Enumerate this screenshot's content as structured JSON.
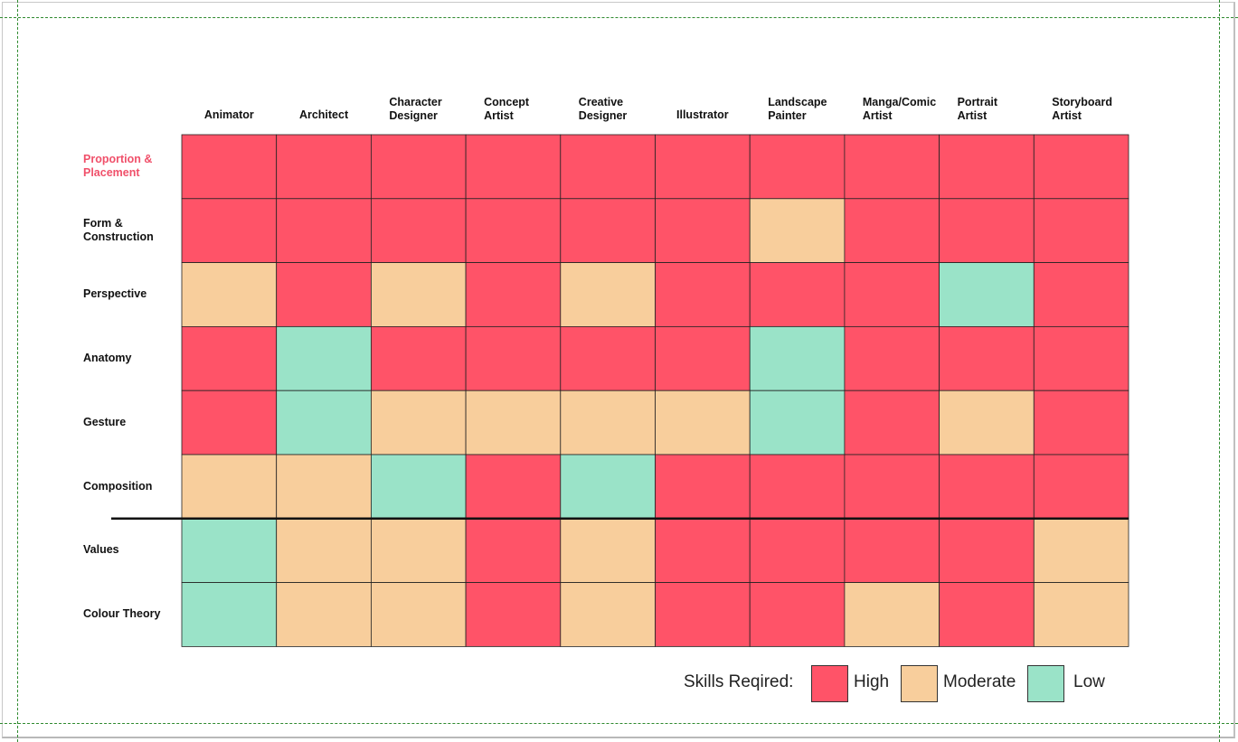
{
  "chart_data": {
    "type": "heatmap",
    "columns": [
      "Animator",
      "Architect",
      "Character\nDesigner",
      "Concept\nArtist",
      "Creative\nDesigner",
      "Illustrator",
      "Landscape\nPainter",
      "Manga/Comic\nArtist",
      "Portrait\nArtist",
      "Storyboard\nArtist"
    ],
    "rows": [
      "Proportion &\nPlacement",
      "Form &\nConstruction",
      "Perspective",
      "Anatomy",
      "Gesture",
      "Composition",
      "Values",
      "Colour Theory"
    ],
    "highlighted_row": 0,
    "divider_after_row": 5,
    "values": [
      [
        "High",
        "High",
        "High",
        "High",
        "High",
        "High",
        "High",
        "High",
        "High",
        "High"
      ],
      [
        "High",
        "High",
        "High",
        "High",
        "High",
        "High",
        "Moderate",
        "High",
        "High",
        "High"
      ],
      [
        "Moderate",
        "High",
        "Moderate",
        "High",
        "Moderate",
        "High",
        "High",
        "High",
        "Low",
        "High"
      ],
      [
        "High",
        "Low",
        "High",
        "High",
        "High",
        "High",
        "Low",
        "High",
        "High",
        "High"
      ],
      [
        "High",
        "Low",
        "Moderate",
        "Moderate",
        "Moderate",
        "Moderate",
        "Low",
        "High",
        "Moderate",
        "High"
      ],
      [
        "Moderate",
        "Moderate",
        "Low",
        "High",
        "Low",
        "High",
        "High",
        "High",
        "High",
        "High"
      ],
      [
        "Low",
        "Moderate",
        "Moderate",
        "High",
        "Moderate",
        "High",
        "High",
        "High",
        "High",
        "Moderate"
      ],
      [
        "Low",
        "Moderate",
        "Moderate",
        "High",
        "Moderate",
        "High",
        "High",
        "Moderate",
        "High",
        "Moderate"
      ]
    ],
    "legend": {
      "title": "Skills Reqired:",
      "entries": [
        {
          "level": "High",
          "label": "High",
          "color": "#ff5368"
        },
        {
          "level": "Moderate",
          "label": "Moderate",
          "color": "#f8ce9c"
        },
        {
          "level": "Low",
          "label": "Low",
          "color": "#9ae3c8"
        }
      ]
    },
    "colors": {
      "High": "#ff5368",
      "Moderate": "#f8ce9c",
      "Low": "#9ae3c8",
      "highlight_text": "#f0506a"
    }
  }
}
